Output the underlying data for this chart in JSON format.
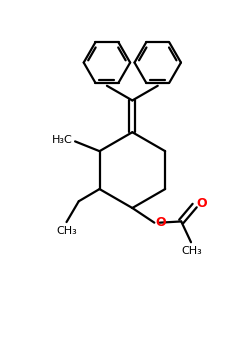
{
  "bg_color": "#ffffff",
  "bond_color": "#000000",
  "oxygen_color": "#ff0000",
  "line_width": 1.6,
  "figsize": [
    2.5,
    3.5
  ],
  "dpi": 100,
  "xlim": [
    0,
    10
  ],
  "ylim": [
    0,
    14
  ]
}
